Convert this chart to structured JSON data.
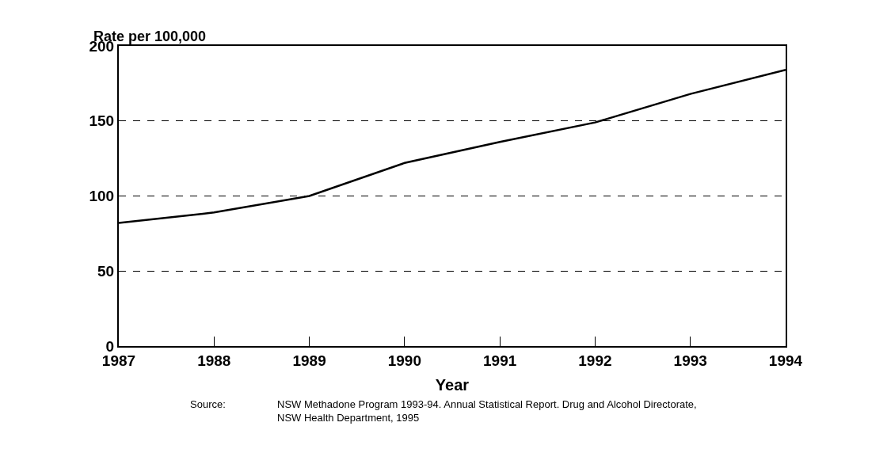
{
  "chart_data": {
    "type": "line",
    "ylabel": "Rate per 100,000",
    "xlabel": "Year",
    "x": [
      1987,
      1988,
      1989,
      1990,
      1991,
      1992,
      1993,
      1994
    ],
    "series": [
      {
        "color": "#000000",
        "values": [
          82,
          89,
          100,
          122,
          136,
          149,
          168,
          184
        ]
      }
    ],
    "xlim": [
      1987,
      1994
    ],
    "xticks": [
      1987,
      1988,
      1989,
      1990,
      1991,
      1992,
      1993,
      1994
    ],
    "ylim": [
      0,
      200
    ],
    "yticks": [
      0,
      50,
      100,
      150,
      200
    ],
    "grid": "y",
    "line_style": "solid",
    "annotations": [
      "Source:",
      "NSW Methadone Program 1993-94. Annual Statistical Report. Drug and Alcohol Directorate,\nNSW Health Department, 1995"
    ]
  }
}
